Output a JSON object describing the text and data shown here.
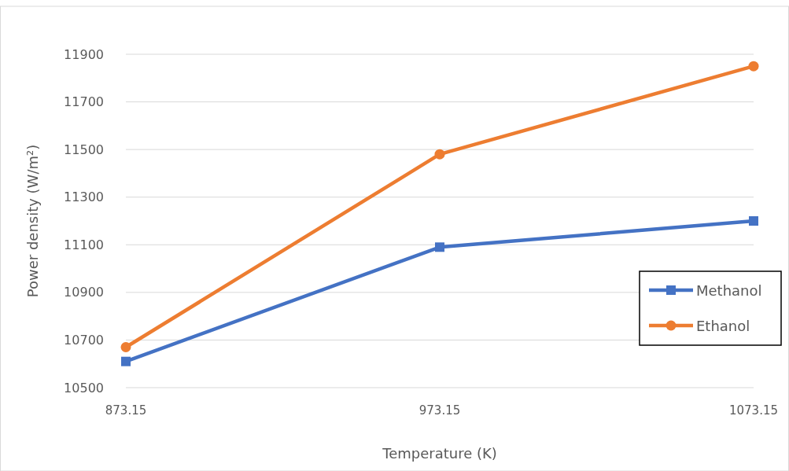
{
  "chart_data": {
    "type": "line",
    "xlabel": "Temperature (K)",
    "ylabel": "Power density (W/m²)",
    "x": [
      873.15,
      973.15,
      1073.15
    ],
    "xlim": [
      873.15,
      1073.15
    ],
    "xticks": [
      {
        "value": 873.15,
        "label": "873.15"
      },
      {
        "value": 973.15,
        "label": "973.15"
      },
      {
        "value": 1073.15,
        "label": "1073.15"
      }
    ],
    "ylim": [
      10500,
      11900
    ],
    "yticks": [
      10500,
      10700,
      10900,
      11100,
      11300,
      11500,
      11700,
      11900
    ],
    "grid": "y",
    "legend": "right",
    "line_style": "solid",
    "series": [
      {
        "name": "Methanol",
        "color": "#4472c4",
        "marker": "square",
        "values": [
          10610,
          11090,
          11200
        ]
      },
      {
        "name": "Ethanol",
        "color": "#ed7d31",
        "marker": "circle",
        "values": [
          10670,
          11480,
          11850
        ]
      }
    ]
  }
}
